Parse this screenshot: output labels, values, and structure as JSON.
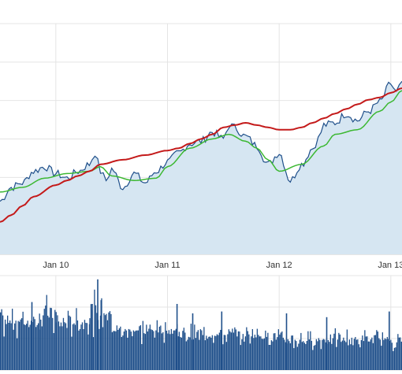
{
  "colors": {
    "price_line": "#1f4f8a",
    "price_fill": "#d6e6f2",
    "ma_fast": "#3cb832",
    "ma_slow": "#c41a1a",
    "volume": "#1f4f8a",
    "grid": "#e4e4e4"
  },
  "chart_data": [
    {
      "type": "area",
      "x_ticks": [
        "Jan 10",
        "Jan 11",
        "Jan 12",
        "Jan 13"
      ],
      "xlim": [
        2009.5,
        2013.1
      ],
      "ylim": [
        0,
        10
      ],
      "grid": true,
      "series": [
        {
          "role": "price",
          "x": [
            2009.5,
            2009.6,
            2009.7,
            2009.8,
            2009.9,
            2010.0,
            2010.1,
            2010.2,
            2010.3,
            2010.35,
            2010.4,
            2010.45,
            2010.5,
            2010.6,
            2010.7,
            2010.8,
            2010.9,
            2011.0,
            2011.1,
            2011.2,
            2011.3,
            2011.4,
            2011.5,
            2011.55,
            2011.6,
            2011.7,
            2011.8,
            2011.9,
            2012.0,
            2012.1,
            2012.2,
            2012.3,
            2012.35,
            2012.4,
            2012.5,
            2012.6,
            2012.7,
            2012.8,
            2012.9,
            2013.0,
            2013.05,
            2013.1
          ],
          "values": [
            2.3,
            2.9,
            3.1,
            3.6,
            3.8,
            3.5,
            3.3,
            3.6,
            3.9,
            4.4,
            3.6,
            3.2,
            3.7,
            2.9,
            3.5,
            3.1,
            3.6,
            4.0,
            4.4,
            4.8,
            4.9,
            5.3,
            5.0,
            5.6,
            5.5,
            5.1,
            4.7,
            3.9,
            4.4,
            3.2,
            3.9,
            4.6,
            5.0,
            5.6,
            5.7,
            6.1,
            5.8,
            6.2,
            6.6,
            7.4,
            7.0,
            7.5
          ]
        },
        {
          "role": "moving_average_fast",
          "x": [
            2009.5,
            2009.7,
            2009.9,
            2010.1,
            2010.3,
            2010.4,
            2010.5,
            2010.7,
            2010.9,
            2011.0,
            2011.2,
            2011.4,
            2011.55,
            2011.7,
            2011.8,
            2011.9,
            2012.0,
            2012.2,
            2012.4,
            2012.5,
            2012.7,
            2012.9,
            2013.0,
            2013.1
          ],
          "values": [
            2.7,
            2.9,
            3.3,
            3.5,
            3.6,
            3.8,
            3.4,
            3.2,
            3.3,
            3.8,
            4.6,
            5.0,
            5.2,
            4.9,
            4.6,
            4.1,
            3.6,
            3.9,
            4.7,
            5.2,
            5.4,
            6.2,
            6.6,
            7.1
          ]
        },
        {
          "role": "moving_average_slow",
          "x": [
            2009.5,
            2009.6,
            2009.7,
            2009.8,
            2010.0,
            2010.1,
            2010.2,
            2010.3,
            2010.4,
            2010.6,
            2010.8,
            2011.0,
            2011.1,
            2011.2,
            2011.3,
            2011.4,
            2011.5,
            2011.6,
            2011.7,
            2011.8,
            2011.9,
            2012.0,
            2012.1,
            2012.2,
            2012.3,
            2012.4,
            2012.5,
            2012.6,
            2012.7,
            2012.8,
            2012.9,
            2013.0,
            2013.1
          ],
          "values": [
            1.4,
            1.7,
            2.1,
            2.5,
            3.0,
            3.2,
            3.4,
            3.6,
            3.9,
            4.1,
            4.3,
            4.5,
            4.6,
            4.8,
            5.0,
            5.2,
            5.5,
            5.6,
            5.7,
            5.6,
            5.5,
            5.4,
            5.4,
            5.5,
            5.7,
            5.9,
            6.1,
            6.3,
            6.5,
            6.7,
            6.8,
            7.0,
            7.2
          ]
        }
      ]
    },
    {
      "type": "bar",
      "role": "volume",
      "xlim": [
        2009.5,
        2013.1
      ],
      "ylim": [
        0,
        10
      ],
      "grid": true,
      "segments": [
        {
          "x0": 2009.5,
          "x1": 2009.85,
          "base": 5.2,
          "amp": 2.0
        },
        {
          "x0": 2009.85,
          "x1": 2010.0,
          "base": 5.8,
          "amp": 3.0
        },
        {
          "x0": 2010.0,
          "x1": 2010.3,
          "base": 5.0,
          "amp": 2.0
        },
        {
          "x0": 2010.3,
          "x1": 2010.5,
          "base": 6.0,
          "amp": 3.0
        },
        {
          "x0": 2010.5,
          "x1": 2011.1,
          "base": 4.2,
          "amp": 1.8
        },
        {
          "x0": 2011.1,
          "x1": 2012.0,
          "base": 3.7,
          "amp": 1.5
        },
        {
          "x0": 2012.0,
          "x1": 2013.1,
          "base": 3.2,
          "amp": 1.4
        }
      ],
      "spikes": [
        {
          "x": 2009.78,
          "value": 7.2
        },
        {
          "x": 2010.37,
          "value": 9.6
        },
        {
          "x": 2010.4,
          "value": 7.4
        },
        {
          "x": 2010.32,
          "value": 7.0
        },
        {
          "x": 2011.08,
          "value": 7.0
        },
        {
          "x": 2011.22,
          "value": 6.0
        },
        {
          "x": 2011.48,
          "value": 6.2
        },
        {
          "x": 2012.06,
          "value": 6.0
        },
        {
          "x": 2012.42,
          "value": 5.6
        },
        {
          "x": 2012.98,
          "value": 6.2
        }
      ]
    }
  ]
}
